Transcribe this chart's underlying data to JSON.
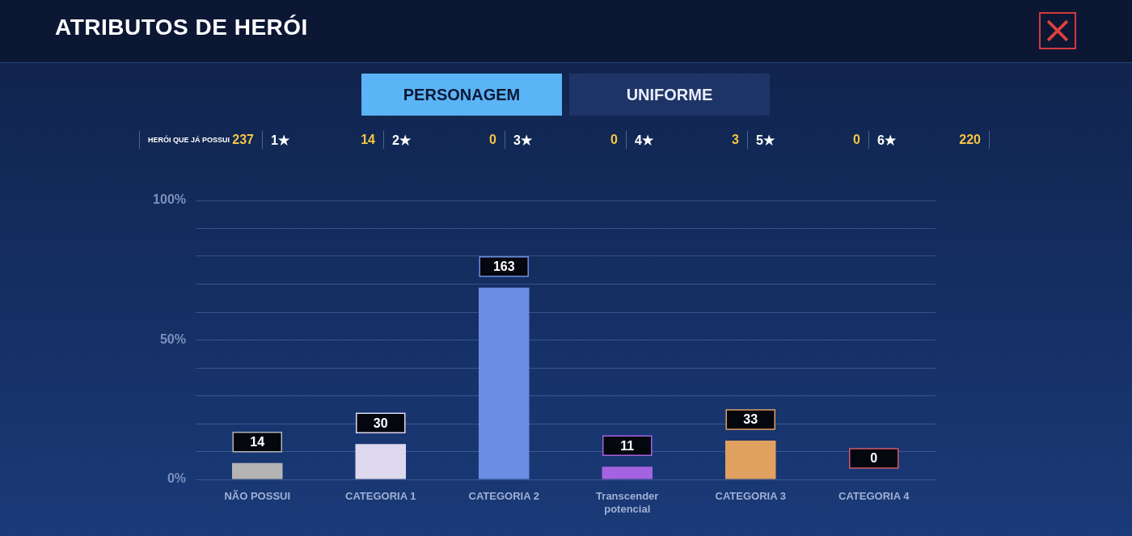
{
  "chart_data": {
    "type": "bar",
    "title": "ATRIBUTOS DE HERÓI",
    "annotations": [
      "PERSONAGEM",
      "UNIFORME",
      "HERÓI QUE JÁ POSSUI",
      "237",
      "1★",
      "14",
      "2★",
      "0",
      "3★",
      "0",
      "4★",
      "3",
      "5★",
      "0",
      "6★",
      "220",
      {
        "text": "14",
        "x": "NÃO POSSUI",
        "y": 5.9
      },
      {
        "text": "30",
        "x": "CATEGORIA 1",
        "y": 12.7
      },
      {
        "text": "163",
        "x": "CATEGORIA 2",
        "y": 68.8
      },
      {
        "text": "11",
        "x": "Transcender potencial",
        "y": 4.6
      },
      {
        "text": "33",
        "x": "CATEGORIA 3",
        "y": 13.9
      },
      {
        "text": "0",
        "x": "CATEGORIA 4",
        "y": 0
      }
    ],
    "categories": [
      "NÃO POSSUI",
      "CATEGORIA 1",
      "CATEGORIA 2",
      "Transcender potencial",
      "CATEGORIA 3",
      "CATEGORIA 4"
    ],
    "values": [
      5.9,
      12.7,
      68.8,
      4.6,
      13.9,
      0
    ],
    "colors": [
      "#b4b4b4",
      "#ddd8ee",
      "#6b8de3",
      "#a463e0",
      "#e0a060",
      "#d05a6a"
    ],
    "ylim": [
      0,
      100
    ],
    "yticks": [
      {
        "value": 0,
        "label": "0%"
      },
      {
        "value": 10,
        "label": null
      },
      {
        "value": 20,
        "label": null
      },
      {
        "value": 30,
        "label": null
      },
      {
        "value": 40,
        "label": null
      },
      {
        "value": 50,
        "label": "50%"
      },
      {
        "value": 60,
        "label": null
      },
      {
        "value": 70,
        "label": null
      },
      {
        "value": 80,
        "label": null
      },
      {
        "value": 90,
        "label": null
      },
      {
        "value": 100,
        "label": "100%"
      }
    ],
    "grid": "y",
    "legend": false
  }
}
